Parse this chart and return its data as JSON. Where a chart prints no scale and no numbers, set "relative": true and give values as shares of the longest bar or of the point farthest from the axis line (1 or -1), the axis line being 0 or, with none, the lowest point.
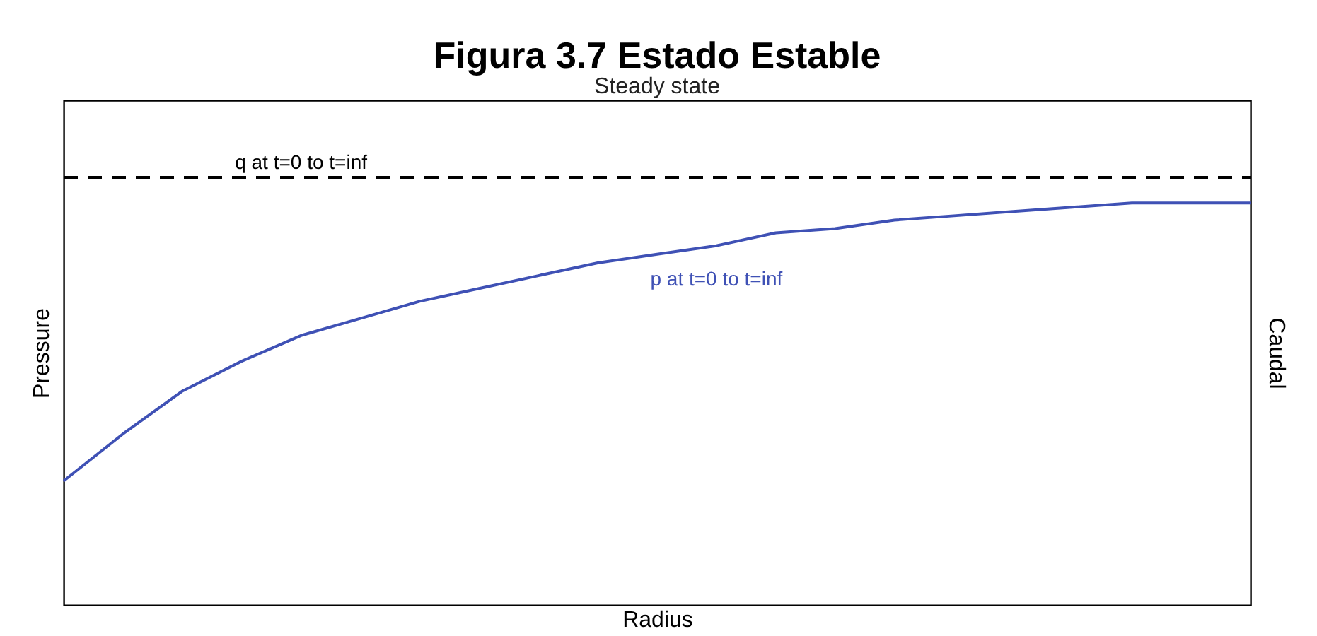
{
  "chart_data": {
    "type": "line",
    "title": "Figura 3.7 Estado Estable",
    "subtitle": "Steady state",
    "xlabel": "Radius",
    "ylabel": "Pressure",
    "y2label": "Caudal",
    "relative": true,
    "marker": "none",
    "categories": [
      null,
      null,
      null,
      null,
      null,
      null,
      null,
      null,
      null,
      null,
      null,
      null,
      null,
      null,
      null,
      null,
      null,
      null,
      null,
      null,
      null
    ],
    "series": [
      {
        "name": "q at t=0 to t=inf",
        "color": "#000000",
        "line_style": "dashed",
        "values": [
          1,
          1,
          1,
          1,
          1,
          1,
          1,
          1,
          1,
          1,
          1,
          1,
          1,
          1,
          1,
          1,
          1,
          1,
          1,
          1,
          1
        ]
      },
      {
        "name": "p at t=0 to t=inf",
        "color": "#3f51b5",
        "line_style": "solid",
        "values": [
          0.29,
          0.4,
          0.5,
          0.57,
          0.63,
          0.67,
          0.71,
          0.74,
          0.77,
          0.8,
          0.82,
          0.84,
          0.87,
          0.88,
          0.9,
          0.91,
          0.92,
          0.93,
          0.94,
          0.94,
          0.94
        ]
      }
    ]
  }
}
